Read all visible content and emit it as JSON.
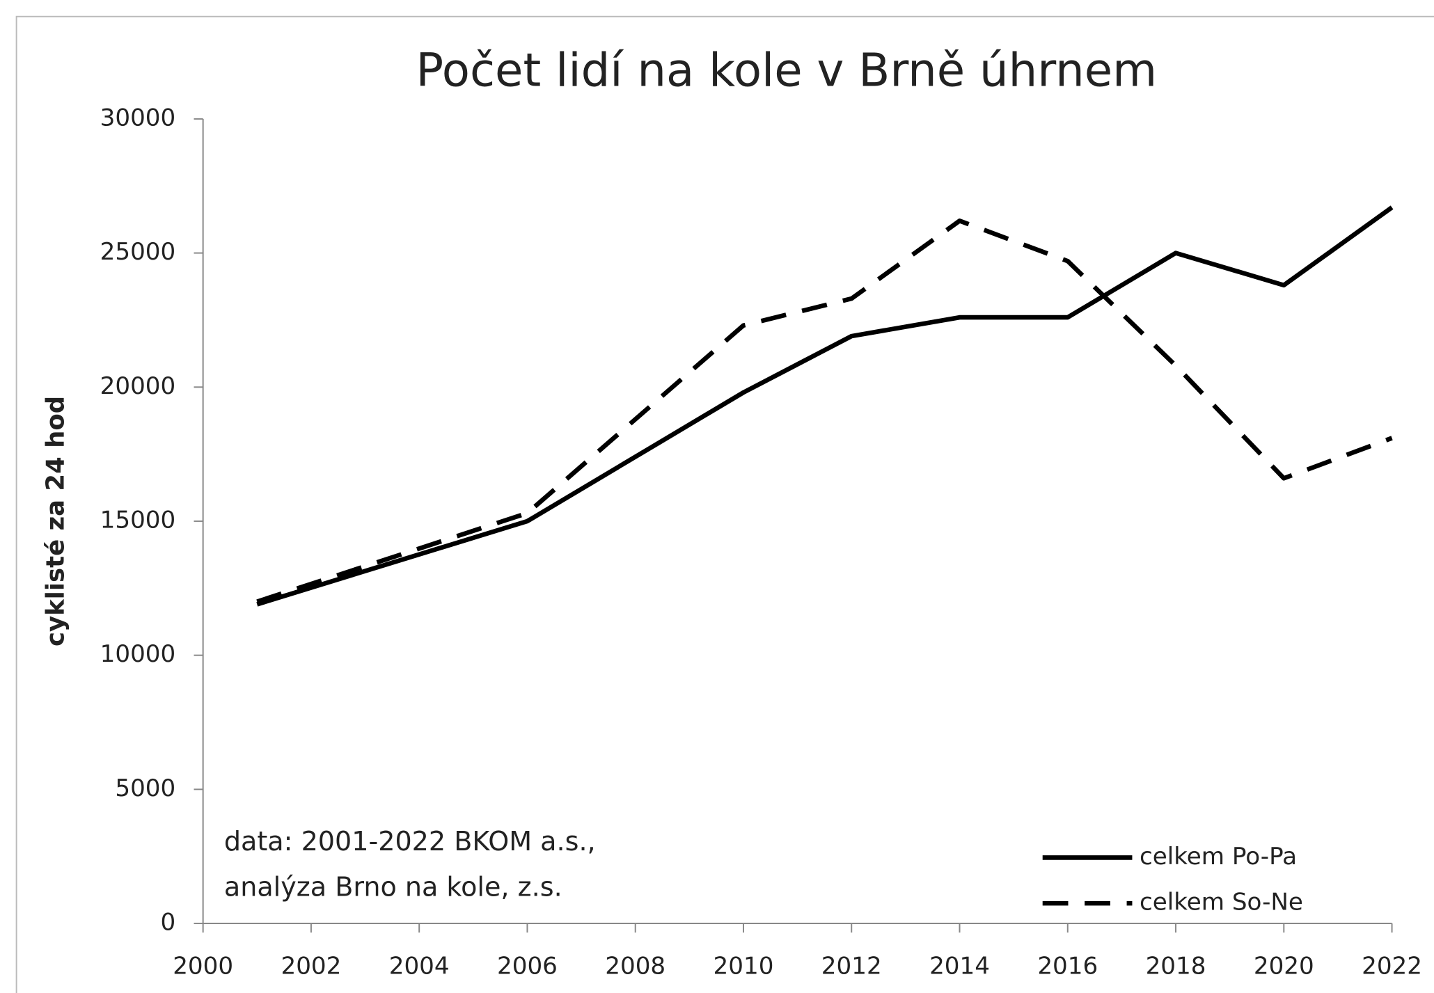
{
  "chart_data": {
    "type": "line",
    "title": "Počet lidí na kole v Brně úhrnem",
    "y_label": "cyklisté za 24 hod",
    "annotations": [
      "data: 2001-2022  BKOM a.s.,",
      "analýza Brno na kole, z.s."
    ],
    "x": [
      2001,
      2006,
      2010,
      2012,
      2014,
      2016,
      2018,
      2020,
      2022
    ],
    "series": [
      {
        "name": "celkem Po-Pa",
        "color": "#000000",
        "dashed": false,
        "values": [
          11900,
          15000,
          19800,
          21900,
          22600,
          22600,
          25000,
          23800,
          26700
        ]
      },
      {
        "name": "celkem So-Ne",
        "color": "#000000",
        "dashed": true,
        "values": [
          12000,
          15300,
          22300,
          23300,
          26200,
          24700,
          20800,
          16600,
          18100
        ]
      }
    ],
    "xlim": [
      2000,
      2022
    ],
    "xticks": [
      2000,
      2002,
      2004,
      2006,
      2008,
      2010,
      2012,
      2014,
      2016,
      2018,
      2020,
      2022
    ],
    "ylim": [
      0,
      30000
    ],
    "yticks": [
      0,
      5000,
      10000,
      15000,
      20000,
      25000,
      30000
    ],
    "grid": false,
    "legend": "lower right"
  }
}
